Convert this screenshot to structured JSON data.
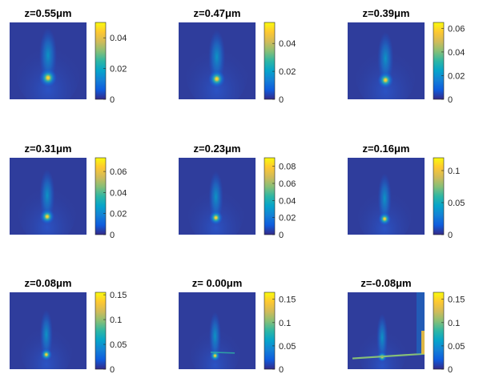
{
  "colormap": {
    "name": "parula",
    "stops": [
      "#352a87",
      "#0f5cdd",
      "#1481d6",
      "#06a4ca",
      "#2eb7a4",
      "#87bf77",
      "#d1bb59",
      "#fec832",
      "#f9fb0e"
    ]
  },
  "chart_data": [
    {
      "type": "heatmap",
      "title": "z=0.55μm",
      "colorbar": {
        "ticks": [
          0,
          0.02,
          0.04
        ],
        "tick_labels": [
          "0",
          "0.02",
          "0.04"
        ],
        "range": [
          0,
          0.05
        ]
      }
    },
    {
      "type": "heatmap",
      "title": "z=0.47μm",
      "colorbar": {
        "ticks": [
          0,
          0.02,
          0.04
        ],
        "tick_labels": [
          "0",
          "0.02",
          "0.04"
        ],
        "range": [
          0,
          0.055
        ]
      }
    },
    {
      "type": "heatmap",
      "title": "z=0.39μm",
      "colorbar": {
        "ticks": [
          0,
          0.02,
          0.04,
          0.06
        ],
        "tick_labels": [
          "0",
          "0.02",
          "0.04",
          "0.06"
        ],
        "range": [
          0,
          0.065
        ]
      }
    },
    {
      "type": "heatmap",
      "title": "z=0.31μm",
      "colorbar": {
        "ticks": [
          0,
          0.02,
          0.04,
          0.06
        ],
        "tick_labels": [
          "0",
          "0.02",
          "0.04",
          "0.06"
        ],
        "range": [
          0,
          0.073
        ]
      }
    },
    {
      "type": "heatmap",
      "title": "z=0.23μm",
      "colorbar": {
        "ticks": [
          0,
          0.02,
          0.04,
          0.06,
          0.08
        ],
        "tick_labels": [
          "0",
          "0.02",
          "0.04",
          "0.06",
          "0.08"
        ],
        "range": [
          0,
          0.09
        ]
      }
    },
    {
      "type": "heatmap",
      "title": "z=0.16μm",
      "colorbar": {
        "ticks": [
          0,
          0.05,
          0.1
        ],
        "tick_labels": [
          "0",
          "0.05",
          "0.1"
        ],
        "range": [
          0,
          0.12
        ]
      }
    },
    {
      "type": "heatmap",
      "title": "z=0.08μm",
      "colorbar": {
        "ticks": [
          0,
          0.05,
          0.1,
          0.15
        ],
        "tick_labels": [
          "0",
          "0.05",
          "0.1",
          "0.15"
        ],
        "range": [
          0,
          0.155
        ]
      }
    },
    {
      "type": "heatmap",
      "title": "z= 0.00μm",
      "colorbar": {
        "ticks": [
          0,
          0.05,
          0.1,
          0.15
        ],
        "tick_labels": [
          "0",
          "0.05",
          "0.1",
          "0.15"
        ],
        "range": [
          0,
          0.165
        ]
      }
    },
    {
      "type": "heatmap",
      "title": "z=-0.08μm",
      "colorbar": {
        "ticks": [
          0,
          0.05,
          0.1,
          0.15
        ],
        "tick_labels": [
          "0",
          "0.05",
          "0.1",
          "0.15"
        ],
        "range": [
          0,
          0.165
        ]
      }
    }
  ]
}
